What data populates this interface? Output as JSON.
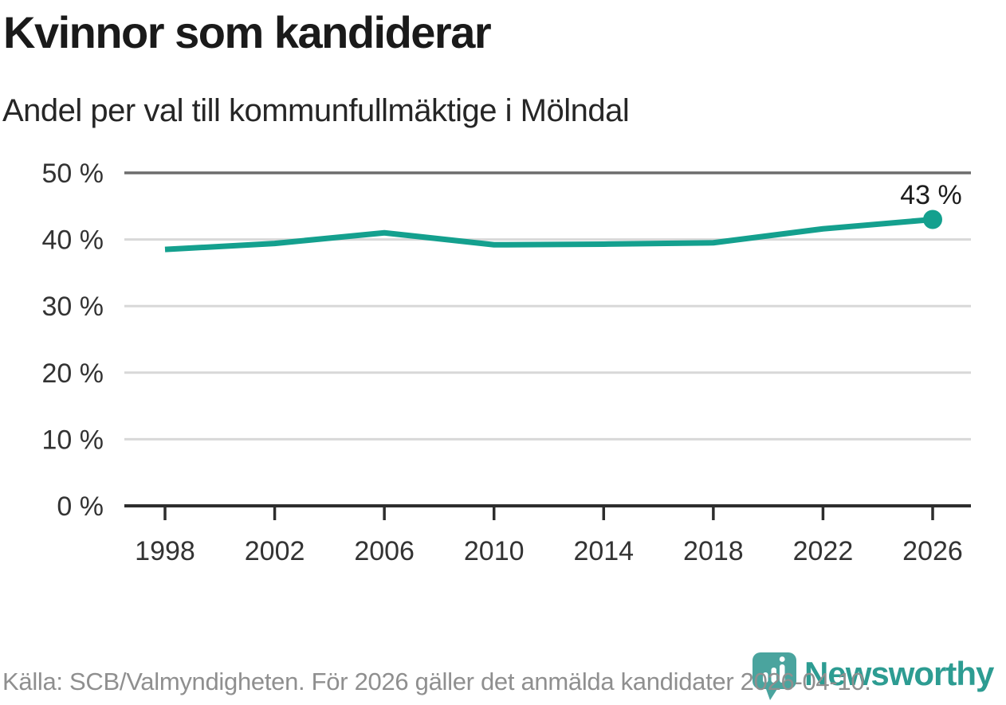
{
  "header": {
    "title": "Kvinnor som kandiderar",
    "subtitle": "Andel per val till kommunfullmäktige i Mölndal"
  },
  "chart_data": {
    "type": "line",
    "title": "Kvinnor som kandiderar",
    "subtitle": "Andel per val till kommunfullmäktige i Mölndal",
    "x": [
      1998,
      2002,
      2006,
      2010,
      2014,
      2018,
      2022,
      2026
    ],
    "values": [
      38.5,
      39.4,
      41.0,
      39.2,
      39.3,
      39.5,
      41.6,
      43.0
    ],
    "x_tick_labels": [
      "1998",
      "2002",
      "2006",
      "2010",
      "2014",
      "2018",
      "2022",
      "2026"
    ],
    "y_ticks": [
      0,
      10,
      20,
      30,
      40,
      50
    ],
    "y_tick_labels": [
      "0 %",
      "10 %",
      "20 %",
      "30 %",
      "40 %",
      "50 %"
    ],
    "xlim": [
      1998,
      2026
    ],
    "ylim": [
      0,
      50
    ],
    "grid": "horizontal",
    "legend": "none",
    "line_color": "#14a08e",
    "end_point_label": "43 %",
    "end_point_year": 2026,
    "end_point_value": 43
  },
  "footer": {
    "source": "Källa: SCB/Valmyndigheten. För 2026 gäller det anmälda kandidater 2026-04-10."
  },
  "logo": {
    "wordmark": "Newsworthy",
    "brand_color": "#2d9c92",
    "pin_color": "#4aa49e",
    "icon": "bar-chart-pin-icon"
  },
  "colors": {
    "accent": "#14a08e",
    "title_text": "#1a1a1a",
    "axis": "#2d2d2d",
    "tick_label": "#333333",
    "grid": "#d8d8d8",
    "grid_top": "#6d6d6d",
    "muted": "#8f8f8f"
  }
}
